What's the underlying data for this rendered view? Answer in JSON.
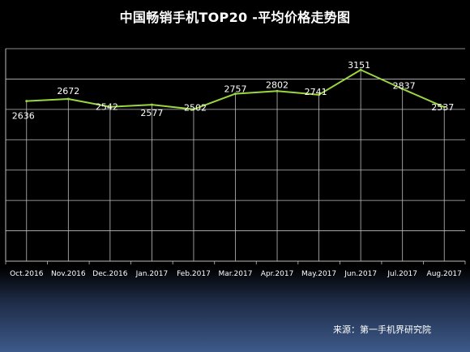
{
  "title": "中国畅销手机TOP20 -平均价格走势图",
  "source": "来源：第一手机界研究院",
  "colors": {
    "line": "#9ad640",
    "grid": "#bdbdbd",
    "text": "#ffffff"
  },
  "chart_data": {
    "type": "line",
    "title": "中国畅销手机TOP20 -平均价格走势图",
    "xlabel": "",
    "ylabel": "",
    "categories": [
      "Oct.2016",
      "Nov.2016",
      "Dec.2016",
      "Jan.2017",
      "Feb.2017",
      "Mar.2017",
      "Apr.2017",
      "May.2017",
      "Jun.2017",
      "Jul.2017",
      "Aug.2017"
    ],
    "series": [
      {
        "values": [
          2636,
          2672,
          2542,
          2577,
          2502,
          2757,
          2802,
          2741,
          3151,
          2837,
          2537
        ]
      }
    ],
    "data_labels": [
      "2636",
      "2672",
      "2542",
      "2577",
      "2502",
      "2757",
      "2802",
      "2741",
      "3151",
      "2837",
      "2537"
    ],
    "ylim": [
      0,
      3500
    ],
    "grid": true,
    "legend": "none"
  }
}
